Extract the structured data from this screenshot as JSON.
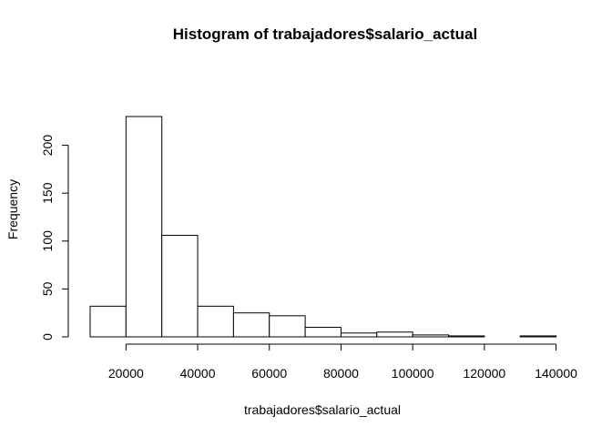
{
  "chart_data": {
    "type": "bar",
    "title": "Histogram of trabajadores$salario_actual",
    "xlabel": "trabajadores$salario_actual",
    "ylabel": "Frequency",
    "bins": [
      {
        "from": 10000,
        "to": 20000,
        "count": 32
      },
      {
        "from": 20000,
        "to": 30000,
        "count": 230
      },
      {
        "from": 30000,
        "to": 40000,
        "count": 106
      },
      {
        "from": 40000,
        "to": 50000,
        "count": 32
      },
      {
        "from": 50000,
        "to": 60000,
        "count": 25
      },
      {
        "from": 60000,
        "to": 70000,
        "count": 22
      },
      {
        "from": 70000,
        "to": 80000,
        "count": 10
      },
      {
        "from": 80000,
        "to": 90000,
        "count": 4
      },
      {
        "from": 90000,
        "to": 100000,
        "count": 5
      },
      {
        "from": 100000,
        "to": 110000,
        "count": 2
      },
      {
        "from": 110000,
        "to": 120000,
        "count": 1
      },
      {
        "from": 120000,
        "to": 130000,
        "count": 0
      },
      {
        "from": 130000,
        "to": 140000,
        "count": 1
      }
    ],
    "xlim": [
      10000,
      140000
    ],
    "ylim": [
      0,
      230
    ],
    "x_ticks": [
      20000,
      40000,
      60000,
      80000,
      100000,
      120000,
      140000
    ],
    "y_ticks": [
      0,
      50,
      100,
      150,
      200
    ],
    "grid": false,
    "legend": "none"
  }
}
